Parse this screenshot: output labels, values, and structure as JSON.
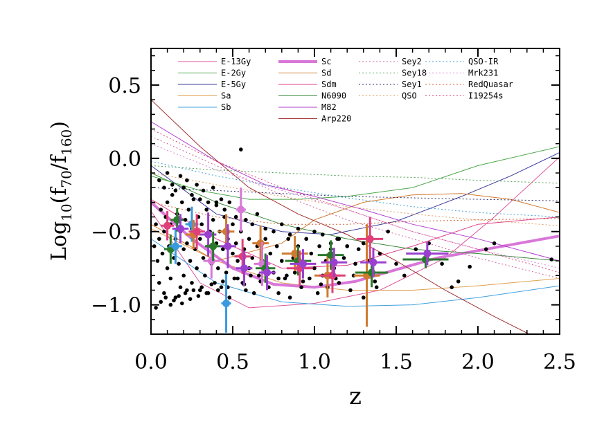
{
  "chart_data": {
    "type": "scatter",
    "xlabel": "z",
    "ylabel": "Log10(f70/f160)",
    "xlim": [
      0.0,
      2.5
    ],
    "ylim": [
      -1.2,
      0.75
    ],
    "x_ticks": [
      0.0,
      0.5,
      1.0,
      1.5,
      2.0,
      2.5
    ],
    "x_tick_labels": [
      "0.0",
      "0.5",
      "1.0",
      "1.5",
      "2.0",
      "2.5"
    ],
    "y_ticks": [
      0.5,
      0.0,
      -0.5,
      -1.0
    ],
    "y_tick_labels": [
      "0.5",
      "0.0",
      "−0.5",
      "−1.0"
    ],
    "grid": false,
    "legend_placement": "top",
    "templates": [
      {
        "name": "E-13Gy",
        "color": "#e0559a",
        "dash": "solid",
        "width": 1,
        "x": [
          0,
          0.3,
          0.6,
          1.0,
          1.4,
          1.8,
          2.1,
          2.5
        ],
        "y": [
          -0.36,
          -0.85,
          -1.02,
          -0.99,
          -0.9,
          -0.68,
          -0.4,
          0.01
        ]
      },
      {
        "name": "E-2Gy",
        "color": "#4aa84a",
        "dash": "solid",
        "width": 1,
        "x": [
          0,
          0.3,
          0.6,
          0.9,
          1.2,
          1.6,
          2.0,
          2.5
        ],
        "y": [
          -0.12,
          -0.22,
          -0.28,
          -0.28,
          -0.26,
          -0.2,
          -0.05,
          0.08
        ]
      },
      {
        "name": "E-5Gy",
        "color": "#3a3a9a",
        "dash": "solid",
        "width": 1,
        "x": [
          0,
          0.4,
          0.8,
          1.1,
          1.5,
          1.9,
          2.2,
          2.5
        ],
        "y": [
          -0.05,
          -0.38,
          -0.5,
          -0.52,
          -0.43,
          -0.26,
          -0.12,
          0.04
        ]
      },
      {
        "name": "Sa",
        "color": "#e0a050",
        "dash": "solid",
        "width": 1,
        "x": [
          0,
          0.4,
          0.8,
          1.2,
          1.6,
          2.0,
          2.5
        ],
        "y": [
          -0.48,
          -0.7,
          -0.85,
          -0.9,
          -0.9,
          -0.87,
          -0.82
        ]
      },
      {
        "name": "Sb",
        "color": "#40a0e0",
        "dash": "solid",
        "width": 1,
        "x": [
          0,
          0.4,
          0.8,
          1.2,
          1.6,
          2.0,
          2.5
        ],
        "y": [
          -0.55,
          -0.85,
          -0.98,
          -1.01,
          -1.0,
          -0.95,
          -0.87
        ]
      },
      {
        "name": "Sc",
        "color": "#d877d8",
        "dash": "solid",
        "width": 4,
        "x": [
          0,
          0.25,
          0.5,
          0.75,
          1.0,
          1.25,
          1.5,
          1.75,
          2.0,
          2.25,
          2.5
        ],
        "y": [
          -0.3,
          -0.55,
          -0.75,
          -0.86,
          -0.88,
          -0.84,
          -0.76,
          -0.68,
          -0.63,
          -0.58,
          -0.53
        ]
      },
      {
        "name": "Sd",
        "color": "#d07a30",
        "dash": "solid",
        "width": 1,
        "x": [
          0,
          0.4,
          0.8,
          1.0,
          1.3,
          1.6,
          1.9,
          2.2,
          2.5
        ],
        "y": [
          -0.45,
          -0.7,
          -0.58,
          -0.42,
          -0.3,
          -0.25,
          -0.24,
          -0.28,
          -0.37
        ]
      },
      {
        "name": "Sdm",
        "color": "#e0408a",
        "dash": "solid",
        "width": 1,
        "x": [
          0,
          0.4,
          0.8,
          1.2,
          1.6,
          2.0,
          2.5
        ],
        "y": [
          -0.28,
          -0.55,
          -0.75,
          -0.73,
          -0.6,
          -0.45,
          -0.4
        ]
      },
      {
        "name": "N6090",
        "color": "#3a8a3a",
        "dash": "solid",
        "width": 1,
        "x": [
          0,
          0.4,
          0.8,
          1.2,
          1.6,
          2.0,
          2.5
        ],
        "y": [
          -0.1,
          -0.3,
          -0.45,
          -0.55,
          -0.62,
          -0.65,
          -0.7
        ]
      },
      {
        "name": "M82",
        "color": "#b040d0",
        "dash": "solid",
        "width": 1,
        "x": [
          0,
          0.4,
          0.7,
          1.0,
          1.3,
          1.6,
          2.0,
          2.5
        ],
        "y": [
          0.25,
          -0.02,
          -0.18,
          -0.26,
          -0.35,
          -0.45,
          -0.55,
          -0.7
        ]
      },
      {
        "name": "Arp220",
        "color": "#a03030",
        "dash": "solid",
        "width": 1,
        "x": [
          0,
          0.3,
          0.6,
          0.9,
          1.2,
          1.5,
          1.8,
          2.1,
          2.35
        ],
        "y": [
          0.4,
          0.08,
          -0.2,
          -0.38,
          -0.52,
          -0.7,
          -0.9,
          -1.08,
          -1.22
        ]
      },
      {
        "name": "Sey2",
        "color": "#d060a0",
        "dash": "dot",
        "width": 1,
        "x": [
          0,
          0.4,
          0.8,
          1.2,
          1.6,
          2.0,
          2.5
        ],
        "y": [
          0.15,
          -0.05,
          -0.25,
          -0.42,
          -0.55,
          -0.68,
          -0.82
        ]
      },
      {
        "name": "Sey18",
        "color": "#4a9a4a",
        "dash": "dot",
        "width": 1,
        "x": [
          0,
          0.4,
          0.8,
          1.2,
          1.6,
          2.0,
          2.5
        ],
        "y": [
          -0.05,
          -0.08,
          -0.1,
          -0.12,
          -0.13,
          -0.15,
          -0.17
        ]
      },
      {
        "name": "Sey1",
        "color": "#2a2a6a",
        "dash": "dot",
        "width": 1,
        "x": [
          0,
          0.4,
          0.8,
          1.2,
          1.6,
          2.0,
          2.5
        ],
        "y": [
          -0.2,
          -0.22,
          -0.24,
          -0.26,
          -0.27,
          -0.28,
          -0.29
        ]
      },
      {
        "name": "QSO",
        "color": "#e0a060",
        "dash": "dot",
        "width": 1,
        "x": [
          0,
          0.4,
          0.8,
          1.2,
          1.6,
          2.0,
          2.5
        ],
        "y": [
          -0.1,
          -0.18,
          -0.26,
          -0.33,
          -0.38,
          -0.42,
          -0.46
        ]
      },
      {
        "name": "QSO-IR",
        "color": "#40a0d0",
        "dash": "dot",
        "width": 1,
        "x": [
          0,
          0.4,
          0.8,
          1.2,
          1.6,
          2.0,
          2.5
        ],
        "y": [
          -0.02,
          -0.12,
          -0.2,
          -0.27,
          -0.33,
          -0.37,
          -0.4
        ]
      },
      {
        "name": "Mrk231",
        "color": "#d080d0",
        "dash": "dot",
        "width": 1,
        "x": [
          0,
          0.4,
          0.8,
          1.2,
          1.6,
          2.0,
          2.5
        ],
        "y": [
          0.1,
          -0.08,
          -0.22,
          -0.35,
          -0.5,
          -0.62,
          -0.75
        ]
      },
      {
        "name": "RedQuasar",
        "color": "#d06030",
        "dash": "dot",
        "width": 1,
        "x": [
          0,
          0.4,
          0.8,
          1.2,
          1.6,
          2.0,
          2.5
        ],
        "y": [
          -0.3,
          -0.4,
          -0.45,
          -0.45,
          -0.43,
          -0.42,
          -0.41
        ]
      },
      {
        "name": "I19254s",
        "color": "#e04080",
        "dash": "dot",
        "width": 1,
        "x": [
          0,
          0.4,
          0.8,
          1.2,
          1.6,
          2.0,
          2.5
        ],
        "y": [
          0.2,
          -0.02,
          -0.2,
          -0.35,
          -0.5,
          -0.62,
          -0.78
        ]
      }
    ],
    "legend_columns": [
      [
        "E-13Gy",
        "E-2Gy",
        "E-5Gy",
        "Sa",
        "Sb"
      ],
      [
        "Sc",
        "Sd",
        "Sdm",
        "N6090",
        "M82",
        "Arp220"
      ],
      [
        "Sey2",
        "Sey18",
        "Sey1",
        "QSO"
      ],
      [
        "QSO-IR",
        "Mrk231",
        "RedQuasar",
        "I19254s"
      ]
    ],
    "binned_points": [
      {
        "x": 0.1,
        "y": -0.46,
        "xerr": 0.04,
        "yerr": 0.1,
        "color": "#e0407a"
      },
      {
        "x": 0.12,
        "y": -0.62,
        "xerr": 0.04,
        "yerr": 0.1,
        "color": "#2a7a2a"
      },
      {
        "x": 0.15,
        "y": -0.6,
        "xerr": 0.04,
        "yerr": 0.12,
        "color": "#3a9ae0"
      },
      {
        "x": 0.16,
        "y": -0.42,
        "xerr": 0.04,
        "yerr": 0.08,
        "color": "#2a7a2a"
      },
      {
        "x": 0.18,
        "y": -0.48,
        "xerr": 0.05,
        "yerr": 0.1,
        "color": "#9a40d0"
      },
      {
        "x": 0.25,
        "y": -0.45,
        "xerr": 0.04,
        "yerr": 0.12,
        "color": "#3a9ae0"
      },
      {
        "x": 0.26,
        "y": -0.52,
        "xerr": 0.05,
        "yerr": 0.1,
        "color": "#d07a30"
      },
      {
        "x": 0.28,
        "y": -0.5,
        "xerr": 0.05,
        "yerr": 0.12,
        "color": "#e0407a"
      },
      {
        "x": 0.35,
        "y": -0.52,
        "xerr": 0.05,
        "yerr": 0.15,
        "color": "#9a40d0"
      },
      {
        "x": 0.37,
        "y": -0.7,
        "xerr": 0.05,
        "yerr": 0.12,
        "color": "#d877d8"
      },
      {
        "x": 0.38,
        "y": -0.6,
        "xerr": 0.05,
        "yerr": 0.1,
        "color": "#2a7a2a"
      },
      {
        "x": 0.46,
        "y": -0.99,
        "xerr": 0.03,
        "yerr": 0.2,
        "color": "#3a9ae0"
      },
      {
        "x": 0.46,
        "y": -0.5,
        "xerr": 0.05,
        "yerr": 0.12,
        "color": "#d07a30"
      },
      {
        "x": 0.47,
        "y": -0.6,
        "xerr": 0.05,
        "yerr": 0.15,
        "color": "#9a40d0"
      },
      {
        "x": 0.55,
        "y": -0.35,
        "xerr": 0.03,
        "yerr": 0.15,
        "color": "#d877d8"
      },
      {
        "x": 0.56,
        "y": -0.67,
        "xerr": 0.05,
        "yerr": 0.12,
        "color": "#e0407a"
      },
      {
        "x": 0.57,
        "y": -0.75,
        "xerr": 0.05,
        "yerr": 0.12,
        "color": "#9a40d0"
      },
      {
        "x": 0.67,
        "y": -0.58,
        "xerr": 0.05,
        "yerr": 0.12,
        "color": "#d07a30"
      },
      {
        "x": 0.68,
        "y": -0.72,
        "xerr": 0.05,
        "yerr": 0.15,
        "color": "#d877d8"
      },
      {
        "x": 0.7,
        "y": -0.75,
        "xerr": 0.06,
        "yerr": 0.1,
        "color": "#2a7a2a"
      },
      {
        "x": 0.71,
        "y": -0.78,
        "xerr": 0.05,
        "yerr": 0.12,
        "color": "#9a40d0"
      },
      {
        "x": 0.88,
        "y": -0.65,
        "xerr": 0.08,
        "yerr": 0.12,
        "color": "#d07a30"
      },
      {
        "x": 0.9,
        "y": -0.7,
        "xerr": 0.08,
        "yerr": 0.1,
        "color": "#2a7a2a"
      },
      {
        "x": 0.91,
        "y": -0.75,
        "xerr": 0.08,
        "yerr": 0.12,
        "color": "#e0407a"
      },
      {
        "x": 0.93,
        "y": -0.72,
        "xerr": 0.08,
        "yerr": 0.1,
        "color": "#9a40d0"
      },
      {
        "x": 1.08,
        "y": -0.8,
        "xerr": 0.08,
        "yerr": 0.15,
        "color": "#d07a30"
      },
      {
        "x": 1.1,
        "y": -0.66,
        "xerr": 0.08,
        "yerr": 0.1,
        "color": "#2a7a2a"
      },
      {
        "x": 1.11,
        "y": -0.8,
        "xerr": 0.08,
        "yerr": 0.12,
        "color": "#e0407a"
      },
      {
        "x": 1.12,
        "y": -0.71,
        "xerr": 0.08,
        "yerr": 0.1,
        "color": "#9a40d0"
      },
      {
        "x": 1.32,
        "y": -0.8,
        "xerr": 0.08,
        "yerr": 0.35,
        "color": "#d07a30"
      },
      {
        "x": 1.34,
        "y": -0.55,
        "xerr": 0.08,
        "yerr": 0.15,
        "color": "#e0407a"
      },
      {
        "x": 1.35,
        "y": -0.78,
        "xerr": 0.1,
        "yerr": 0.1,
        "color": "#2a7a2a"
      },
      {
        "x": 1.36,
        "y": -0.71,
        "xerr": 0.08,
        "yerr": 0.1,
        "color": "#9a40d0"
      },
      {
        "x": 1.68,
        "y": -0.69,
        "xerr": 0.14,
        "yerr": 0.06,
        "color": "#2a7a2a"
      },
      {
        "x": 1.69,
        "y": -0.65,
        "xerr": 0.13,
        "yerr": 0.08,
        "color": "#9a40d0"
      }
    ],
    "scatter_points": {
      "color": "#000000",
      "x": [
        0.02,
        0.03,
        0.04,
        0.05,
        0.05,
        0.06,
        0.07,
        0.08,
        0.08,
        0.09,
        0.1,
        0.1,
        0.11,
        0.12,
        0.12,
        0.13,
        0.14,
        0.15,
        0.15,
        0.16,
        0.17,
        0.18,
        0.18,
        0.19,
        0.2,
        0.2,
        0.21,
        0.22,
        0.22,
        0.23,
        0.24,
        0.25,
        0.25,
        0.26,
        0.27,
        0.28,
        0.29,
        0.3,
        0.3,
        0.31,
        0.32,
        0.33,
        0.34,
        0.35,
        0.35,
        0.36,
        0.37,
        0.38,
        0.39,
        0.4,
        0.4,
        0.41,
        0.42,
        0.43,
        0.44,
        0.45,
        0.46,
        0.47,
        0.48,
        0.5,
        0.5,
        0.51,
        0.52,
        0.53,
        0.55,
        0.56,
        0.57,
        0.58,
        0.6,
        0.6,
        0.62,
        0.63,
        0.65,
        0.66,
        0.68,
        0.7,
        0.72,
        0.73,
        0.75,
        0.77,
        0.78,
        0.8,
        0.82,
        0.84,
        0.85,
        0.87,
        0.88,
        0.9,
        0.92,
        0.94,
        0.95,
        0.97,
        0.98,
        1.0,
        1.02,
        1.03,
        1.05,
        1.07,
        1.08,
        1.1,
        1.12,
        1.14,
        1.15,
        1.18,
        1.2,
        1.22,
        1.25,
        1.27,
        1.3,
        1.33,
        1.35,
        1.38,
        1.4,
        1.45,
        1.5,
        1.55,
        1.62,
        1.7,
        1.78,
        1.84,
        1.88,
        1.95,
        2.1,
        2.05,
        2.45,
        0.05,
        0.08,
        0.1,
        0.13,
        0.15,
        0.18,
        0.2,
        0.22,
        0.25,
        0.28,
        0.3,
        0.32,
        0.35,
        0.38,
        0.4,
        0.43,
        0.45,
        0.48,
        0.52,
        0.55,
        0.58,
        0.62,
        0.65,
        0.7,
        0.75,
        0.8,
        0.85,
        0.9,
        0.95,
        1.0,
        1.05,
        1.1,
        1.15,
        1.2,
        1.3,
        0.03,
        0.06,
        0.09,
        0.12,
        0.14,
        0.17,
        0.19,
        0.21,
        0.24,
        0.26,
        0.29,
        0.31,
        0.34,
        0.37,
        0.41,
        0.44,
        0.47,
        0.53,
        0.57,
        0.61,
        0.67,
        0.72,
        0.78,
        0.83,
        0.93,
        1.04,
        1.13,
        1.24,
        1.37
      ],
      "y": [
        -0.6,
        -0.45,
        -0.7,
        -0.55,
        -0.85,
        -0.35,
        -0.65,
        -0.5,
        -0.92,
        -0.4,
        -0.75,
        -0.3,
        -0.6,
        -0.82,
        -0.45,
        -0.25,
        -0.68,
        -0.55,
        -0.95,
        -0.38,
        -0.72,
        -0.5,
        -0.88,
        -0.3,
        -0.62,
        -0.8,
        -0.42,
        -0.58,
        -0.9,
        -0.35,
        -0.7,
        -0.48,
        -0.85,
        -0.28,
        -0.62,
        -0.75,
        -0.4,
        -0.55,
        -0.9,
        -0.45,
        -0.68,
        -0.8,
        -0.35,
        -0.6,
        -0.92,
        -0.5,
        -0.72,
        -0.42,
        -0.85,
        -0.58,
        -0.3,
        -0.75,
        -0.5,
        -0.88,
        -0.62,
        -0.4,
        -0.78,
        -0.55,
        -0.95,
        -0.65,
        -0.45,
        -0.82,
        -0.58,
        -0.7,
        -0.5,
        -0.85,
        -0.62,
        -0.9,
        -0.55,
        -0.75,
        -0.68,
        -0.92,
        -0.6,
        -0.8,
        -0.7,
        -0.55,
        -0.88,
        -0.65,
        -0.78,
        -0.6,
        -0.92,
        -0.7,
        -0.82,
        -0.55,
        -0.95,
        -0.68,
        -0.78,
        -0.6,
        -0.88,
        -0.72,
        -0.55,
        -0.82,
        -0.65,
        -0.75,
        -0.92,
        -0.6,
        -0.8,
        -0.7,
        -0.88,
        -0.62,
        -0.75,
        -0.55,
        -0.85,
        -0.68,
        -0.6,
        -0.9,
        -0.72,
        -0.62,
        -0.95,
        -0.7,
        -0.55,
        -0.88,
        -0.65,
        -0.5,
        -0.72,
        -0.8,
        -0.62,
        -0.58,
        -0.72,
        -0.88,
        -0.84,
        -0.74,
        -0.58,
        -0.62,
        -0.69,
        -0.15,
        -0.2,
        -0.1,
        -0.18,
        -0.22,
        -0.12,
        -0.2,
        -0.15,
        -0.25,
        -0.18,
        -0.28,
        -0.22,
        -0.3,
        -0.2,
        -0.32,
        -0.28,
        -0.35,
        -0.3,
        -0.4,
        0.06,
        -0.42,
        -0.45,
        -0.38,
        -0.48,
        -0.5,
        -0.45,
        -0.52,
        -0.48,
        -0.55,
        -0.5,
        -0.52,
        -0.58,
        -0.55,
        -0.6,
        -0.58,
        -1.02,
        -0.98,
        -0.95,
        -1.0,
        -0.97,
        -0.94,
        -0.99,
        -0.92,
        -0.96,
        -0.9,
        -0.94,
        -0.88,
        -0.92,
        -0.86,
        -0.9,
        -0.84,
        -0.88,
        -0.82,
        -0.86,
        -0.8,
        -0.84,
        -0.78,
        -0.82,
        -0.8,
        -0.84,
        -0.86,
        -0.82,
        -0.8,
        -0.84
      ]
    }
  }
}
